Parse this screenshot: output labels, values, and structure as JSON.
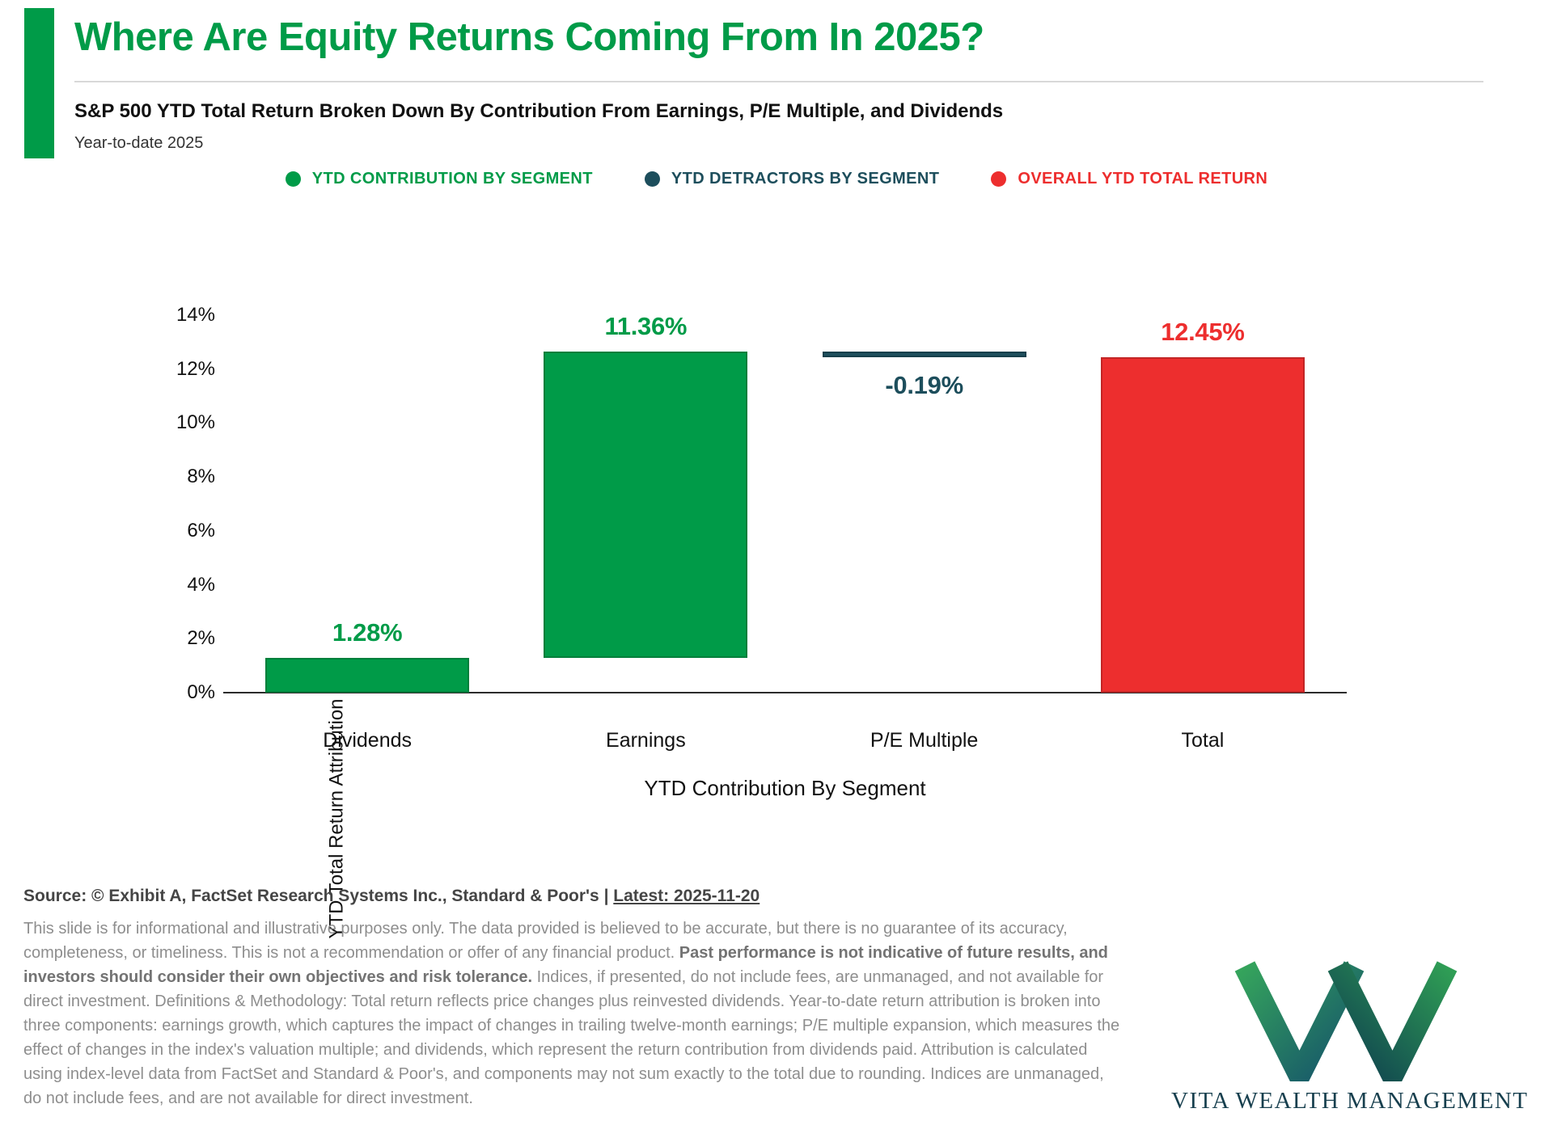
{
  "header": {
    "title": "Where Are Equity Returns Coming From In 2025?",
    "subtitle": "S&P 500 YTD Total Return Broken Down By Contribution From Earnings, P/E Multiple, and Dividends",
    "period": "Year-to-date 2025"
  },
  "colors": {
    "green": "#009b48",
    "teal": "#1d4e5c",
    "red": "#ed2e2e"
  },
  "legend": {
    "items": [
      {
        "label": "YTD CONTRIBUTION BY SEGMENT",
        "color": "#009b48"
      },
      {
        "label": "YTD DETRACTORS BY SEGMENT",
        "color": "#1d4e5c"
      },
      {
        "label": "OVERALL YTD TOTAL RETURN",
        "color": "#ed2e2e"
      }
    ]
  },
  "chart_data": {
    "type": "bar",
    "subtype": "waterfall-attribution",
    "title": "",
    "xlabel": "YTD Contribution By Segment",
    "ylabel": "YTD Total Return Attribution",
    "ylim": [
      0,
      14
    ],
    "ytick_step": 2,
    "ytick_labels": [
      "0%",
      "2%",
      "4%",
      "6%",
      "8%",
      "10%",
      "12%",
      "14%"
    ],
    "grid": false,
    "categories": [
      "Dividends",
      "Earnings",
      "P/E Multiple",
      "Total"
    ],
    "bars": [
      {
        "category": "Dividends",
        "value": 1.28,
        "label": "1.28%",
        "start": 0,
        "end": 1.28,
        "color": "#009b48",
        "label_position": "above"
      },
      {
        "category": "Earnings",
        "value": 11.36,
        "label": "11.36%",
        "start": 1.28,
        "end": 12.64,
        "color": "#009b48",
        "label_position": "above"
      },
      {
        "category": "P/E Multiple",
        "value": -0.19,
        "label": "-0.19%",
        "start": 12.64,
        "end": 12.45,
        "color": "#1d4e5c",
        "label_position": "below"
      },
      {
        "category": "Total",
        "value": 12.45,
        "label": "12.45%",
        "start": 0,
        "end": 12.45,
        "color": "#ed2e2e",
        "label_position": "above"
      }
    ]
  },
  "footer": {
    "source_prefix": "Source: © Exhibit A, FactSet Research Systems Inc., Standard & Poor's | ",
    "source_latest": "Latest: 2025-11-20",
    "disclaimer": {
      "part1": "This slide is for informational and illustrative purposes only. The data provided is believed to be accurate, but there is no guarantee of its accuracy, completeness, or timeliness. This is not a recommendation or offer of any financial product. ",
      "bold": "Past performance is not indicative of future results, and investors should consider their own objectives and risk tolerance.",
      "part2": " Indices, if presented, do not include fees, are unmanaged, and not available for direct investment. Definitions & Methodology: Total return reflects price changes plus reinvested dividends. Year-to-date return attribution is broken into three components: earnings growth, which captures the impact of changes in trailing twelve-month earnings; P/E multiple expansion, which measures the effect of changes in the index's valuation multiple; and dividends, which represent the return contribution from dividends paid. Attribution is calculated using index-level data from FactSet and Standard & Poor's, and components may not sum exactly to the total due to rounding. Indices are unmanaged, do not include fees, and are not available for direct investment."
    }
  },
  "brand": {
    "name": "VITA WEALTH MANAGEMENT"
  }
}
